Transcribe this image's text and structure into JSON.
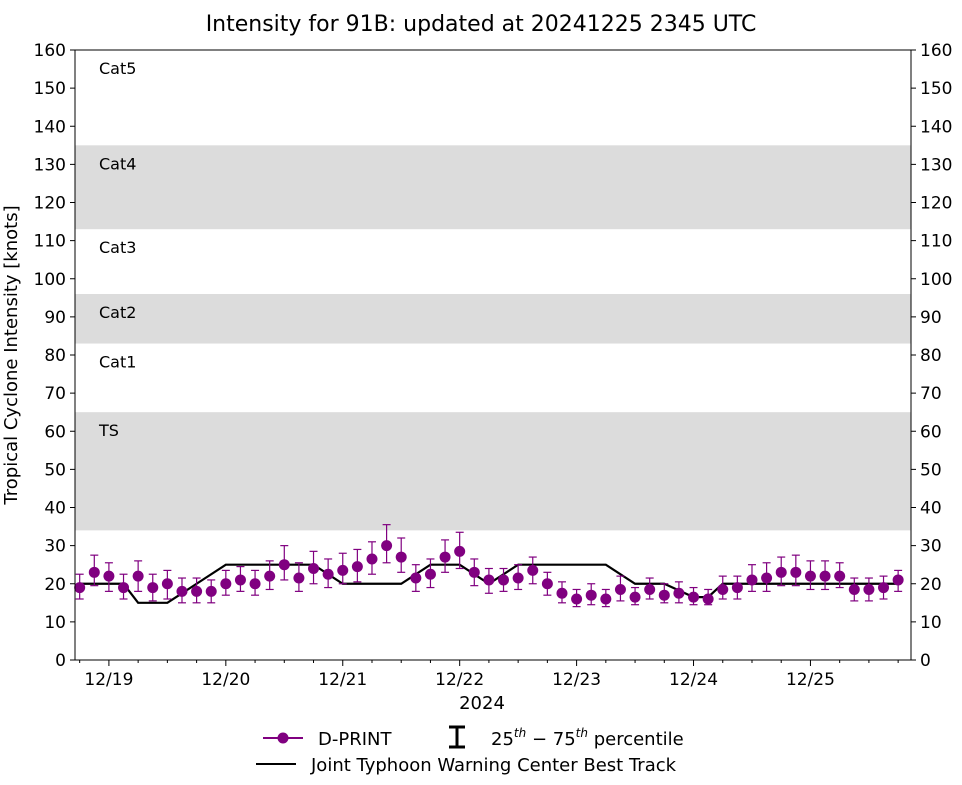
{
  "chart_data": {
    "type": "scatter",
    "title": "Intensity for 91B: updated at 20241225 2345 UTC",
    "xlabel": "2024",
    "ylabel": "Tropical Cyclone Intensity [knots]",
    "ylim": [
      0,
      160
    ],
    "yticks": [
      0,
      10,
      20,
      30,
      40,
      50,
      60,
      70,
      80,
      90,
      100,
      110,
      120,
      130,
      140,
      150,
      160
    ],
    "xlim": [
      -0.29,
      6.86
    ],
    "xticks": [
      {
        "x": 0,
        "label": "12/19"
      },
      {
        "x": 1,
        "label": "12/20"
      },
      {
        "x": 2,
        "label": "12/21"
      },
      {
        "x": 3,
        "label": "12/22"
      },
      {
        "x": 4,
        "label": "12/23"
      },
      {
        "x": 5,
        "label": "12/24"
      },
      {
        "x": 6,
        "label": "12/25"
      }
    ],
    "bands": [
      {
        "label": "Cat5",
        "low": 137,
        "high": 160,
        "shaded": false
      },
      {
        "label": "Cat4",
        "low": 113,
        "high": 135,
        "shaded": true
      },
      {
        "label": "Cat3",
        "low": 96,
        "high": 113,
        "shaded": false
      },
      {
        "label": "Cat2",
        "low": 83,
        "high": 96,
        "shaded": true
      },
      {
        "label": "Cat1",
        "low": 64,
        "high": 83,
        "shaded": false
      },
      {
        "label": "TS",
        "low": 34,
        "high": 65,
        "shaded": true
      }
    ],
    "colors": {
      "dprint": "#800080",
      "best_track": "#000000",
      "band_fill": "#dcdcdc"
    },
    "series": [
      {
        "name": "D-PRINT",
        "marker": "circle",
        "points": [
          {
            "x": -0.25,
            "y": 19,
            "lo": 16,
            "hi": 22.5
          },
          {
            "x": -0.125,
            "y": 23,
            "lo": 19.5,
            "hi": 27.5
          },
          {
            "x": 0.0,
            "y": 22,
            "lo": 18,
            "hi": 25.5
          },
          {
            "x": 0.125,
            "y": 19,
            "lo": 16,
            "hi": 22.5
          },
          {
            "x": 0.25,
            "y": 22,
            "lo": 18,
            "hi": 26
          },
          {
            "x": 0.375,
            "y": 19,
            "lo": 15.5,
            "hi": 22.5
          },
          {
            "x": 0.5,
            "y": 20,
            "lo": 16,
            "hi": 23.5
          },
          {
            "x": 0.625,
            "y": 18,
            "lo": 15,
            "hi": 21.5
          },
          {
            "x": 0.75,
            "y": 18,
            "lo": 15,
            "hi": 21.5
          },
          {
            "x": 0.875,
            "y": 18,
            "lo": 15,
            "hi": 21
          },
          {
            "x": 1.0,
            "y": 20,
            "lo": 17,
            "hi": 23.5
          },
          {
            "x": 1.125,
            "y": 21,
            "lo": 18,
            "hi": 24.5
          },
          {
            "x": 1.25,
            "y": 20,
            "lo": 17,
            "hi": 23.5
          },
          {
            "x": 1.375,
            "y": 22,
            "lo": 18.5,
            "hi": 26
          },
          {
            "x": 1.5,
            "y": 25,
            "lo": 21,
            "hi": 30
          },
          {
            "x": 1.625,
            "y": 21.5,
            "lo": 18,
            "hi": 25.5
          },
          {
            "x": 1.75,
            "y": 24,
            "lo": 20,
            "hi": 28.5
          },
          {
            "x": 1.875,
            "y": 22.5,
            "lo": 19,
            "hi": 26.5
          },
          {
            "x": 2.0,
            "y": 23.5,
            "lo": 20,
            "hi": 28
          },
          {
            "x": 2.125,
            "y": 24.5,
            "lo": 20.5,
            "hi": 29
          },
          {
            "x": 2.25,
            "y": 26.5,
            "lo": 22.5,
            "hi": 31
          },
          {
            "x": 2.375,
            "y": 30,
            "lo": 25.5,
            "hi": 35.5
          },
          {
            "x": 2.5,
            "y": 27,
            "lo": 23,
            "hi": 32
          },
          {
            "x": 2.625,
            "y": 21.5,
            "lo": 18,
            "hi": 25
          },
          {
            "x": 2.75,
            "y": 22.5,
            "lo": 19,
            "hi": 26.5
          },
          {
            "x": 2.875,
            "y": 27,
            "lo": 23,
            "hi": 31.5
          },
          {
            "x": 3.0,
            "y": 28.5,
            "lo": 24,
            "hi": 33.5
          },
          {
            "x": 3.125,
            "y": 23,
            "lo": 19.5,
            "hi": 26.5
          },
          {
            "x": 3.25,
            "y": 21,
            "lo": 17.5,
            "hi": 24
          },
          {
            "x": 3.375,
            "y": 21,
            "lo": 18,
            "hi": 24
          },
          {
            "x": 3.5,
            "y": 21.5,
            "lo": 18.5,
            "hi": 25
          },
          {
            "x": 3.625,
            "y": 23.5,
            "lo": 20,
            "hi": 27
          },
          {
            "x": 3.75,
            "y": 20,
            "lo": 17,
            "hi": 23
          },
          {
            "x": 3.875,
            "y": 17.5,
            "lo": 15,
            "hi": 20.5
          },
          {
            "x": 4.0,
            "y": 16,
            "lo": 14,
            "hi": 18.5
          },
          {
            "x": 4.125,
            "y": 17,
            "lo": 14.5,
            "hi": 20
          },
          {
            "x": 4.25,
            "y": 16,
            "lo": 14,
            "hi": 18.5
          },
          {
            "x": 4.375,
            "y": 18.5,
            "lo": 15.5,
            "hi": 22
          },
          {
            "x": 4.5,
            "y": 16.5,
            "lo": 14.5,
            "hi": 19
          },
          {
            "x": 4.625,
            "y": 18.5,
            "lo": 16,
            "hi": 21.5
          },
          {
            "x": 4.75,
            "y": 17,
            "lo": 15,
            "hi": 20
          },
          {
            "x": 4.875,
            "y": 17.5,
            "lo": 15,
            "hi": 20.5
          },
          {
            "x": 5.0,
            "y": 16.5,
            "lo": 14.5,
            "hi": 19
          },
          {
            "x": 5.125,
            "y": 16,
            "lo": 14.5,
            "hi": 18.5
          },
          {
            "x": 5.25,
            "y": 18.5,
            "lo": 16,
            "hi": 22
          },
          {
            "x": 5.375,
            "y": 19,
            "lo": 16,
            "hi": 22
          },
          {
            "x": 5.5,
            "y": 21,
            "lo": 18,
            "hi": 25
          },
          {
            "x": 5.625,
            "y": 21.5,
            "lo": 18,
            "hi": 25.5
          },
          {
            "x": 5.75,
            "y": 23,
            "lo": 19.5,
            "hi": 27
          },
          {
            "x": 5.875,
            "y": 23,
            "lo": 19.5,
            "hi": 27.5
          },
          {
            "x": 6.0,
            "y": 22,
            "lo": 18.5,
            "hi": 26
          },
          {
            "x": 6.125,
            "y": 22,
            "lo": 18.5,
            "hi": 26
          },
          {
            "x": 6.25,
            "y": 22,
            "lo": 19,
            "hi": 25.5
          },
          {
            "x": 6.375,
            "y": 18.5,
            "lo": 15.5,
            "hi": 21.5
          },
          {
            "x": 6.5,
            "y": 18.5,
            "lo": 15.5,
            "hi": 21.5
          },
          {
            "x": 6.625,
            "y": 19,
            "lo": 16,
            "hi": 22
          },
          {
            "x": 6.75,
            "y": 21,
            "lo": 18,
            "hi": 23.5
          }
        ]
      },
      {
        "name": "Joint Typhoon Warning Center Best Track",
        "marker": "line",
        "points": [
          {
            "x": -0.25,
            "y": 20
          },
          {
            "x": 0.125,
            "y": 20
          },
          {
            "x": 0.25,
            "y": 15
          },
          {
            "x": 0.5,
            "y": 15
          },
          {
            "x": 0.625,
            "y": 17.5
          },
          {
            "x": 0.75,
            "y": 20
          },
          {
            "x": 1.0,
            "y": 25
          },
          {
            "x": 1.75,
            "y": 25
          },
          {
            "x": 2.0,
            "y": 20
          },
          {
            "x": 2.5,
            "y": 20
          },
          {
            "x": 2.75,
            "y": 25
          },
          {
            "x": 3.0,
            "y": 25
          },
          {
            "x": 3.25,
            "y": 20
          },
          {
            "x": 3.5,
            "y": 25
          },
          {
            "x": 4.25,
            "y": 25
          },
          {
            "x": 4.5,
            "y": 20
          },
          {
            "x": 4.75,
            "y": 20
          },
          {
            "x": 5.0,
            "y": 16.5
          },
          {
            "x": 5.125,
            "y": 16.5
          },
          {
            "x": 5.25,
            "y": 20
          },
          {
            "x": 6.75,
            "y": 20
          }
        ]
      }
    ],
    "legend": {
      "placement": "bottom-center",
      "dprint_label": "D-PRINT",
      "errorbar_label_main": "25",
      "errorbar_label_sup1": "th",
      "errorbar_label_mid": " − 75",
      "errorbar_label_sup2": "th",
      "errorbar_label_tail": " percentile",
      "best_track_label": "Joint Typhoon Warning Center Best Track"
    }
  }
}
